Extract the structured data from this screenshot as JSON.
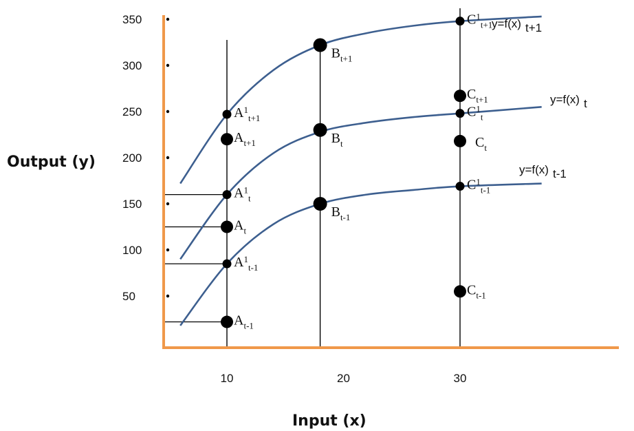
{
  "colors": {
    "axis": "#f0984a",
    "curve": "#3d5f8f",
    "ink": "#000000"
  },
  "chart_data": {
    "type": "line",
    "xlabel": "Input (x)",
    "ylabel": "Output (y)",
    "x_ticks": [
      10,
      20,
      30
    ],
    "y_ticks": [
      50,
      100,
      150,
      200,
      250,
      300,
      350
    ],
    "verticals": [
      10,
      18,
      30
    ],
    "series": [
      {
        "label": "y=f(x)",
        "sub": "t+1",
        "x": [
          6,
          10,
          14,
          18,
          22,
          26,
          30,
          37
        ],
        "y": [
          172,
          247,
          295,
          322,
          335,
          343,
          348,
          353
        ]
      },
      {
        "label": "y=f(x)",
        "sub": "t",
        "x": [
          6,
          10,
          14,
          18,
          22,
          26,
          30,
          37
        ],
        "y": [
          90,
          160,
          205,
          228,
          238,
          244,
          248,
          255
        ]
      },
      {
        "label": "y=f(x)",
        "sub": "t-1",
        "x": [
          6,
          10,
          14,
          18,
          22,
          26,
          30,
          37
        ],
        "y": [
          18,
          85,
          128,
          150,
          160,
          165,
          169,
          172
        ]
      }
    ],
    "points": [
      {
        "name": "A",
        "sup": "1",
        "sub": "t+1",
        "x": 10,
        "y": 247
      },
      {
        "name": "A",
        "sup": "",
        "sub": "t+1",
        "x": 10,
        "y": 220
      },
      {
        "name": "A",
        "sup": "1",
        "sub": "t",
        "x": 10,
        "y": 160
      },
      {
        "name": "A",
        "sup": "",
        "sub": "t",
        "x": 10,
        "y": 125
      },
      {
        "name": "A",
        "sup": "1",
        "sub": "t-1",
        "x": 10,
        "y": 85
      },
      {
        "name": "A",
        "sup": "",
        "sub": "t-1",
        "x": 10,
        "y": 22
      },
      {
        "name": "B",
        "sup": "",
        "sub": "t+1",
        "x": 18,
        "y": 322
      },
      {
        "name": "B",
        "sup": "",
        "sub": "t",
        "x": 18,
        "y": 230
      },
      {
        "name": "B",
        "sup": "",
        "sub": "t-1",
        "x": 18,
        "y": 150
      },
      {
        "name": "C",
        "sup": "1",
        "sub": "t+1",
        "x": 30,
        "y": 348
      },
      {
        "name": "C",
        "sup": "",
        "sub": "t+1",
        "x": 30,
        "y": 267
      },
      {
        "name": "C",
        "sup": "1",
        "sub": "t",
        "x": 30,
        "y": 248
      },
      {
        "name": "C",
        "sup": "",
        "sub": "t",
        "x": 30,
        "y": 218
      },
      {
        "name": "C",
        "sup": "1",
        "sub": "t-1",
        "x": 30,
        "y": 169
      },
      {
        "name": "C",
        "sup": "",
        "sub": "t-1",
        "x": 30,
        "y": 55
      }
    ],
    "reference_levels": [
      160,
      125,
      85,
      22
    ]
  }
}
